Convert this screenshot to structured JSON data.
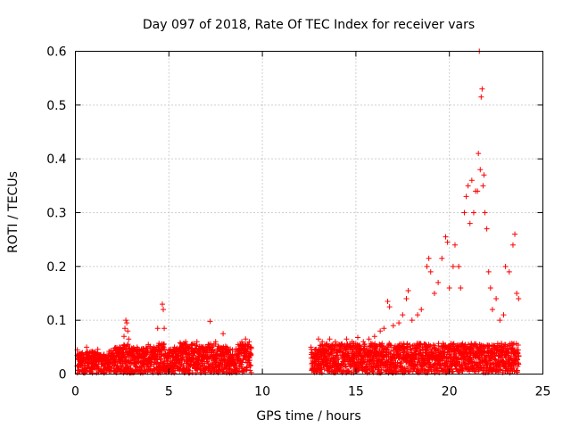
{
  "chart_data": {
    "type": "scatter",
    "title": "Day 097 of 2018, Rate Of TEC Index for receiver vars",
    "xlabel": "GPS time / hours",
    "ylabel": "ROTI / TECUs",
    "xlim": [
      0,
      25
    ],
    "ylim": [
      0,
      0.6
    ],
    "xticks": [
      0,
      5,
      10,
      15,
      20,
      25
    ],
    "yticks": [
      0,
      0.1,
      0.2,
      0.3,
      0.4,
      0.5,
      0.6
    ],
    "xtick_labels": [
      "0",
      "5",
      "10",
      "15",
      "20",
      "25"
    ],
    "ytick_labels": [
      "0",
      "0.1",
      "0.2",
      "0.3",
      "0.4",
      "0.5",
      "0.6"
    ],
    "grid": true,
    "marker": "+",
    "color": "#ff0000",
    "series": [
      {
        "name": "ROTI",
        "points": [
          [
            0.1,
            0.045
          ],
          [
            0.3,
            0.038
          ],
          [
            0.6,
            0.05
          ],
          [
            0.9,
            0.04
          ],
          [
            1.2,
            0.046
          ],
          [
            1.5,
            0.035
          ],
          [
            1.8,
            0.042
          ],
          [
            2.1,
            0.048
          ],
          [
            2.4,
            0.05
          ],
          [
            2.6,
            0.07
          ],
          [
            2.65,
            0.085
          ],
          [
            2.7,
            0.1
          ],
          [
            2.75,
            0.095
          ],
          [
            2.8,
            0.08
          ],
          [
            2.85,
            0.065
          ],
          [
            3.0,
            0.048
          ],
          [
            3.3,
            0.05
          ],
          [
            3.6,
            0.047
          ],
          [
            3.9,
            0.055
          ],
          [
            4.2,
            0.05
          ],
          [
            4.4,
            0.085
          ],
          [
            4.6,
            0.055
          ],
          [
            4.65,
            0.13
          ],
          [
            4.7,
            0.12
          ],
          [
            4.75,
            0.085
          ],
          [
            5.0,
            0.045
          ],
          [
            5.3,
            0.05
          ],
          [
            5.6,
            0.058
          ],
          [
            5.9,
            0.06
          ],
          [
            6.2,
            0.055
          ],
          [
            6.5,
            0.06
          ],
          [
            6.8,
            0.05
          ],
          [
            7.1,
            0.055
          ],
          [
            7.2,
            0.098
          ],
          [
            7.5,
            0.06
          ],
          [
            7.7,
            0.05
          ],
          [
            7.9,
            0.075
          ],
          [
            8.1,
            0.05
          ],
          [
            8.4,
            0.045
          ],
          [
            8.7,
            0.055
          ],
          [
            8.9,
            0.06
          ],
          [
            9.1,
            0.065
          ],
          [
            9.3,
            0.06
          ],
          [
            9.4,
            0.05
          ],
          [
            12.6,
            0.05
          ],
          [
            12.8,
            0.045
          ],
          [
            13.0,
            0.065
          ],
          [
            13.2,
            0.06
          ],
          [
            13.4,
            0.055
          ],
          [
            13.6,
            0.065
          ],
          [
            13.9,
            0.06
          ],
          [
            14.2,
            0.055
          ],
          [
            14.5,
            0.065
          ],
          [
            14.8,
            0.06
          ],
          [
            15.1,
            0.068
          ],
          [
            15.4,
            0.06
          ],
          [
            15.7,
            0.065
          ],
          [
            16.0,
            0.07
          ],
          [
            16.3,
            0.08
          ],
          [
            16.5,
            0.085
          ],
          [
            16.7,
            0.135
          ],
          [
            16.8,
            0.125
          ],
          [
            17.0,
            0.09
          ],
          [
            17.3,
            0.095
          ],
          [
            17.5,
            0.11
          ],
          [
            17.7,
            0.14
          ],
          [
            17.8,
            0.155
          ],
          [
            18.0,
            0.1
          ],
          [
            18.3,
            0.11
          ],
          [
            18.5,
            0.12
          ],
          [
            18.8,
            0.2
          ],
          [
            18.9,
            0.215
          ],
          [
            19.0,
            0.19
          ],
          [
            19.2,
            0.15
          ],
          [
            19.4,
            0.17
          ],
          [
            19.6,
            0.215
          ],
          [
            19.8,
            0.255
          ],
          [
            19.9,
            0.245
          ],
          [
            20.0,
            0.16
          ],
          [
            20.2,
            0.2
          ],
          [
            20.3,
            0.24
          ],
          [
            20.5,
            0.2
          ],
          [
            20.6,
            0.16
          ],
          [
            20.8,
            0.3
          ],
          [
            20.9,
            0.33
          ],
          [
            21.0,
            0.35
          ],
          [
            21.1,
            0.28
          ],
          [
            21.2,
            0.36
          ],
          [
            21.3,
            0.3
          ],
          [
            21.4,
            0.34
          ],
          [
            21.5,
            0.34
          ],
          [
            21.55,
            0.41
          ],
          [
            21.6,
            0.6
          ],
          [
            21.65,
            0.38
          ],
          [
            21.7,
            0.515
          ],
          [
            21.75,
            0.53
          ],
          [
            21.8,
            0.35
          ],
          [
            21.85,
            0.37
          ],
          [
            21.9,
            0.3
          ],
          [
            22.0,
            0.27
          ],
          [
            22.1,
            0.19
          ],
          [
            22.2,
            0.16
          ],
          [
            22.3,
            0.12
          ],
          [
            22.5,
            0.14
          ],
          [
            22.7,
            0.1
          ],
          [
            22.9,
            0.11
          ],
          [
            23.0,
            0.2
          ],
          [
            23.2,
            0.19
          ],
          [
            23.4,
            0.24
          ],
          [
            23.5,
            0.26
          ],
          [
            23.6,
            0.15
          ],
          [
            23.7,
            0.14
          ]
        ]
      }
    ]
  }
}
